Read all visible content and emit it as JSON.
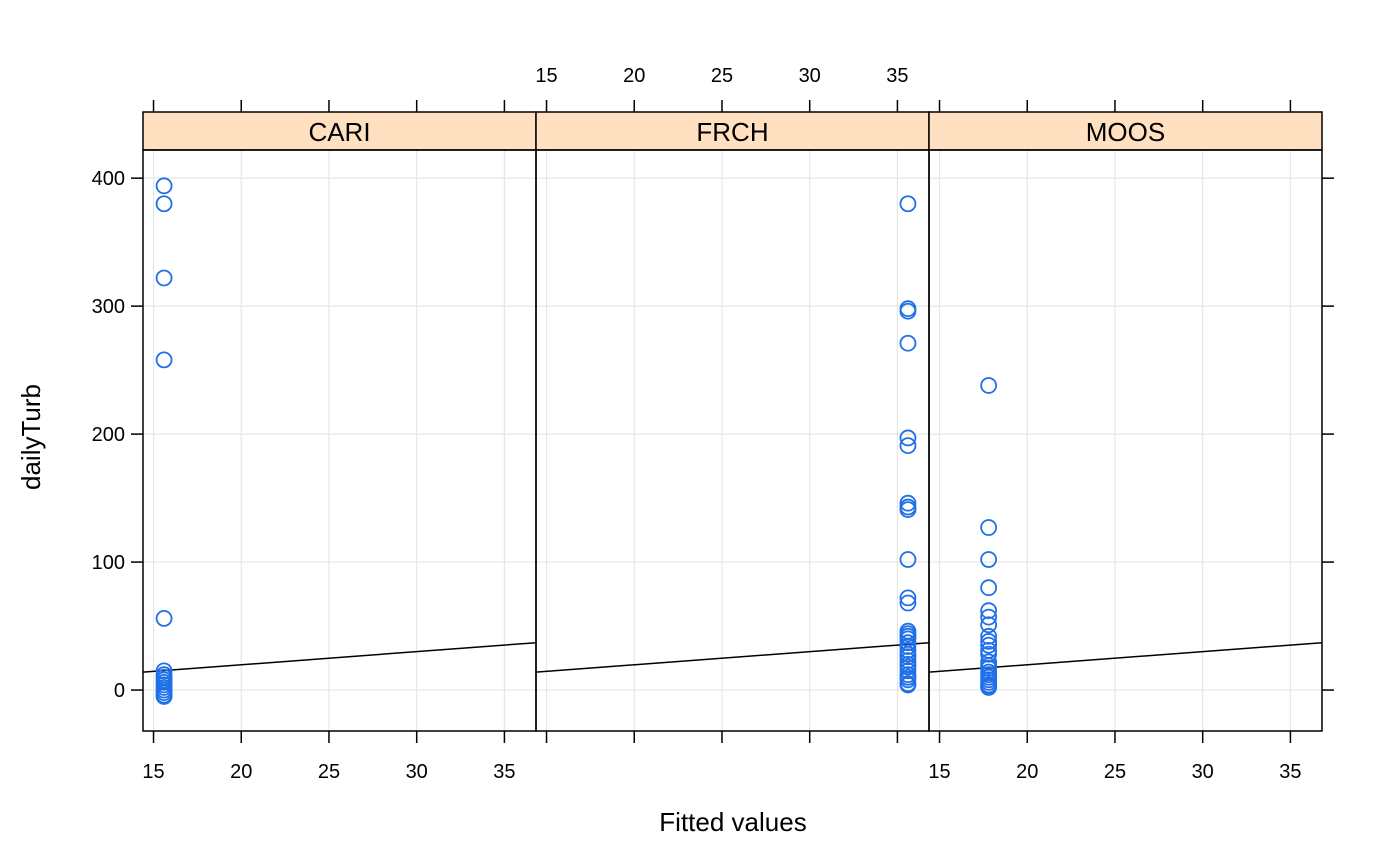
{
  "chart_data": {
    "type": "scatter",
    "xlabel": "Fitted values",
    "ylabel": "dailyTurb",
    "xlim": [
      14.4,
      36.8
    ],
    "ylim": [
      -32,
      422
    ],
    "x_ticks": [
      15,
      20,
      25,
      30,
      35
    ],
    "y_ticks": [
      0,
      100,
      200,
      300,
      400
    ],
    "grid": true,
    "colors": {
      "points": "#1f6fe8",
      "strip": "#ffe0c0",
      "grid": "#e6e6e6",
      "line": "#000000"
    },
    "panels": [
      {
        "name": "CARI",
        "x_value": 15.6,
        "y": [
          394,
          380,
          322,
          258,
          56,
          15,
          12,
          10,
          8,
          6,
          4,
          2,
          0,
          -2,
          -4,
          -5
        ],
        "fit_line": {
          "x": [
            14.4,
            36.8
          ],
          "y": [
            14,
            37
          ]
        }
      },
      {
        "name": "FRCH",
        "x_value": 35.6,
        "y": [
          380,
          298,
          296,
          271,
          197,
          191,
          146,
          143,
          141,
          102,
          72,
          68,
          46,
          44,
          42,
          40,
          37,
          34,
          31,
          28,
          26,
          23,
          20,
          18,
          15,
          12,
          10,
          8,
          5,
          4
        ],
        "fit_line": {
          "x": [
            14.4,
            36.8
          ],
          "y": [
            14,
            37
          ]
        }
      },
      {
        "name": "MOOS",
        "x_value": 17.8,
        "y": [
          238,
          127,
          102,
          80,
          62,
          57,
          51,
          42,
          38,
          35,
          31,
          28,
          22,
          19,
          17,
          14,
          12,
          10,
          8,
          6,
          4,
          3,
          2
        ],
        "fit_line": {
          "x": [
            14.4,
            36.8
          ],
          "y": [
            14,
            37
          ]
        }
      }
    ]
  }
}
